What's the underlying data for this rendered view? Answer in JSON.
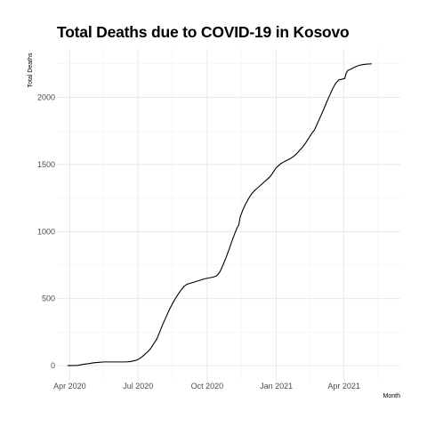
{
  "chart_data": {
    "type": "line",
    "title": "Total Deaths due to COVID-19 in Kosovo",
    "xlabel": "Month",
    "ylabel": "Total Deaths",
    "grid": true,
    "legend": "none",
    "x_ticks": [
      {
        "label": "Apr 2020",
        "date": "2020-04-01"
      },
      {
        "label": "Jul 2020",
        "date": "2020-07-01"
      },
      {
        "label": "Oct 2020",
        "date": "2020-10-01"
      },
      {
        "label": "Jan 2021",
        "date": "2021-01-01"
      },
      {
        "label": "Apr 2021",
        "date": "2021-04-01"
      }
    ],
    "y_ticks": [
      0,
      500,
      1000,
      1500,
      2000
    ],
    "xlim": [
      "2020-03-15",
      "2021-06-15"
    ],
    "ylim": [
      -112,
      2361
    ],
    "series": [
      {
        "points": [
          [
            "2020-03-29",
            1
          ],
          [
            "2020-04-05",
            1
          ],
          [
            "2020-04-12",
            3
          ],
          [
            "2020-04-19",
            10
          ],
          [
            "2020-04-26",
            15
          ],
          [
            "2020-05-03",
            22
          ],
          [
            "2020-05-10",
            25
          ],
          [
            "2020-05-17",
            28
          ],
          [
            "2020-05-24",
            28
          ],
          [
            "2020-05-31",
            28
          ],
          [
            "2020-06-07",
            28
          ],
          [
            "2020-06-14",
            28
          ],
          [
            "2020-06-21",
            31
          ],
          [
            "2020-06-28",
            40
          ],
          [
            "2020-07-02",
            50
          ],
          [
            "2020-07-06",
            65
          ],
          [
            "2020-07-10",
            85
          ],
          [
            "2020-07-14",
            105
          ],
          [
            "2020-07-18",
            130
          ],
          [
            "2020-07-22",
            165
          ],
          [
            "2020-07-26",
            200
          ],
          [
            "2020-07-30",
            255
          ],
          [
            "2020-08-03",
            310
          ],
          [
            "2020-08-07",
            360
          ],
          [
            "2020-08-11",
            410
          ],
          [
            "2020-08-15",
            455
          ],
          [
            "2020-08-19",
            495
          ],
          [
            "2020-08-23",
            530
          ],
          [
            "2020-08-27",
            562
          ],
          [
            "2020-08-31",
            590
          ],
          [
            "2020-09-04",
            607
          ],
          [
            "2020-09-08",
            614
          ],
          [
            "2020-09-12",
            620
          ],
          [
            "2020-09-16",
            628
          ],
          [
            "2020-09-20",
            634
          ],
          [
            "2020-09-24",
            642
          ],
          [
            "2020-09-28",
            648
          ],
          [
            "2020-10-02",
            653
          ],
          [
            "2020-10-06",
            657
          ],
          [
            "2020-10-10",
            662
          ],
          [
            "2020-10-14",
            672
          ],
          [
            "2020-10-18",
            700
          ],
          [
            "2020-10-22",
            750
          ],
          [
            "2020-10-26",
            805
          ],
          [
            "2020-10-30",
            865
          ],
          [
            "2020-11-03",
            930
          ],
          [
            "2020-11-07",
            990
          ],
          [
            "2020-11-10",
            1030
          ],
          [
            "2020-11-12",
            1050
          ],
          [
            "2020-11-14",
            1110
          ],
          [
            "2020-11-17",
            1155
          ],
          [
            "2020-11-21",
            1205
          ],
          [
            "2020-11-25",
            1245
          ],
          [
            "2020-11-29",
            1280
          ],
          [
            "2020-12-03",
            1305
          ],
          [
            "2020-12-07",
            1325
          ],
          [
            "2020-12-11",
            1345
          ],
          [
            "2020-12-15",
            1365
          ],
          [
            "2020-12-19",
            1385
          ],
          [
            "2020-12-23",
            1405
          ],
          [
            "2020-12-27",
            1435
          ],
          [
            "2020-12-31",
            1470
          ],
          [
            "2021-01-04",
            1492
          ],
          [
            "2021-01-08",
            1510
          ],
          [
            "2021-01-12",
            1522
          ],
          [
            "2021-01-16",
            1533
          ],
          [
            "2021-01-20",
            1545
          ],
          [
            "2021-01-24",
            1560
          ],
          [
            "2021-01-28",
            1580
          ],
          [
            "2021-02-01",
            1605
          ],
          [
            "2021-02-05",
            1630
          ],
          [
            "2021-02-09",
            1660
          ],
          [
            "2021-02-13",
            1695
          ],
          [
            "2021-02-17",
            1730
          ],
          [
            "2021-02-21",
            1760
          ],
          [
            "2021-02-25",
            1810
          ],
          [
            "2021-03-01",
            1860
          ],
          [
            "2021-03-05",
            1910
          ],
          [
            "2021-03-09",
            1965
          ],
          [
            "2021-03-13",
            2015
          ],
          [
            "2021-03-17",
            2065
          ],
          [
            "2021-03-21",
            2105
          ],
          [
            "2021-03-25",
            2130
          ],
          [
            "2021-03-29",
            2135
          ],
          [
            "2021-04-02",
            2140
          ],
          [
            "2021-04-04",
            2180
          ],
          [
            "2021-04-06",
            2200
          ],
          [
            "2021-04-10",
            2210
          ],
          [
            "2021-04-14",
            2222
          ],
          [
            "2021-04-18",
            2232
          ],
          [
            "2021-04-22",
            2240
          ],
          [
            "2021-04-26",
            2244
          ],
          [
            "2021-04-30",
            2247
          ],
          [
            "2021-05-04",
            2249
          ],
          [
            "2021-05-08",
            2250
          ]
        ]
      }
    ]
  },
  "colors": {
    "line": "#000000",
    "grid": "#e6e6e6",
    "background": "#ffffff"
  }
}
